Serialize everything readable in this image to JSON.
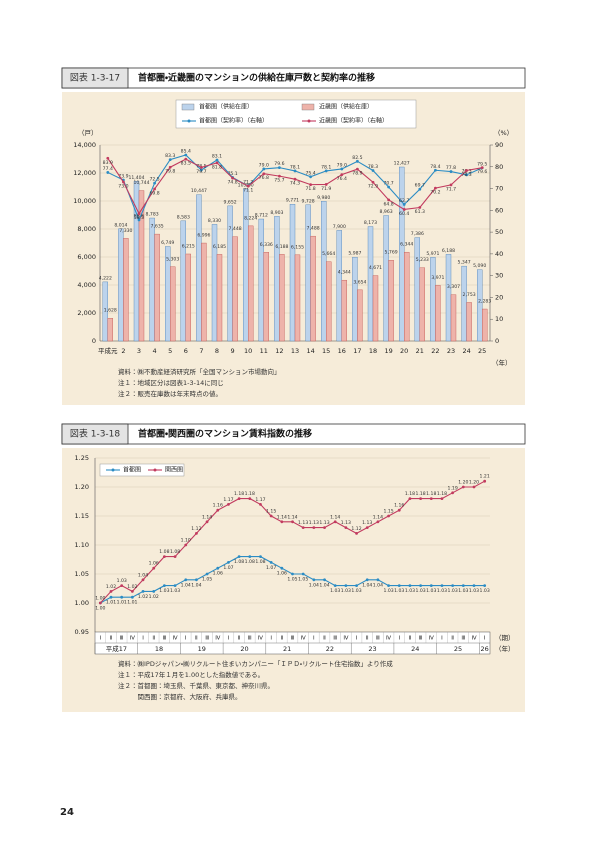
{
  "page_number": "24",
  "chart_data": [
    {
      "type": "combo",
      "figure_label": "図表 1-3-17",
      "title": "首都圏・近畿圏のマンションの供給在庫戸数と契約率の推移",
      "y_label": "（戸）",
      "y2_label": "（%）",
      "x_label": "（年）",
      "categories": [
        "平成元",
        "2",
        "3",
        "4",
        "5",
        "6",
        "7",
        "8",
        "9",
        "10",
        "11",
        "12",
        "13",
        "14",
        "15",
        "16",
        "17",
        "18",
        "19",
        "20",
        "21",
        "22",
        "23",
        "24",
        "25"
      ],
      "ylim": [
        0,
        14000
      ],
      "yticks": [
        0,
        {
          "value": 2000,
          "label": "2,000"
        },
        {
          "value": 4000,
          "label": "4,000"
        },
        {
          "value": 6000,
          "label": "6,000"
        },
        {
          "value": 8000,
          "label": "8,000"
        },
        {
          "value": 10000,
          "label": "10,000"
        },
        {
          "value": 12000,
          "label": "12,000"
        },
        {
          "value": 14000,
          "label": "14,000"
        }
      ],
      "y2lim": [
        0,
        90
      ],
      "y2ticks": [
        0,
        10,
        20,
        30,
        40,
        50,
        60,
        70,
        80,
        90
      ],
      "grid": true,
      "series": [
        {
          "name": "首都圏（供給在庫）",
          "kind": "bar",
          "color": "#bcd3ec",
          "values": [
            4222,
            8014,
            11404,
            8783,
            6749,
            8583,
            10447,
            8330,
            9652,
            10860,
            8712,
            8903,
            9771,
            9728,
            9980,
            7900,
            5987,
            8173,
            8963,
            12427,
            7386,
            5971,
            6188,
            5347,
            5090
          ],
          "value_labels": [
            "4,222",
            "8,014",
            "11,404",
            "8,783",
            "6,749",
            "8,583",
            "10,447",
            "8,330",
            "9,652",
            "10,860",
            "8,712",
            "8,903",
            "9,771",
            "9,728",
            "9,980",
            "7,900",
            "5,987",
            "8,173",
            "8,963",
            "12,427",
            "7,386",
            "5,971",
            "6,188",
            "5,347",
            "5,090"
          ]
        },
        {
          "name": "近畿圏（供給在庫）",
          "kind": "bar",
          "color": "#eeb3aa",
          "values": [
            1628,
            7330,
            10744,
            7635,
            5303,
            6215,
            6996,
            6185,
            7448,
            8224,
            6336,
            6188,
            6155,
            7488,
            5664,
            4344,
            3654,
            4671,
            5769,
            6344,
            5233,
            3971,
            3307,
            2753,
            2283
          ],
          "value_labels": [
            "1,628",
            "7,330",
            "10,744",
            "7,635",
            "5,303",
            "6,215",
            "6,996",
            "6,185",
            "7,448",
            "8,224",
            "6,336",
            "6,188",
            "6,155",
            "7,488",
            "5,664",
            "4,344",
            "3,654",
            "4,671",
            "5,769",
            "6,344",
            "5,233",
            "3,971",
            "3,307",
            "2,753",
            "2,283"
          ]
        },
        {
          "name": "首都圏（契約率）（右軸）",
          "kind": "line",
          "axis": "y2",
          "color": "#2b8cc4",
          "values": [
            77.4,
            73.9,
            55.6,
            72.5,
            83.3,
            85.4,
            78.5,
            83.1,
            75.1,
            71.2,
            79.0,
            79.6,
            78.1,
            75.4,
            78.1,
            79.0,
            82.5,
            78.3,
            70.7,
            62.7,
            69.7,
            78.4,
            77.8,
            76.3,
            79.5
          ],
          "value_labels": [
            "77.4",
            "73.9",
            "55.6",
            "72.5",
            "83.3",
            "85.4",
            "78.5",
            "83.1",
            "75.1",
            "71.2",
            "79.0",
            "79.6",
            "78.1",
            "75.4",
            "78.1",
            "79.0",
            "82.5",
            "78.3",
            "70.7",
            "62.7",
            "69.7",
            "78.4",
            "77.8",
            "76.3",
            "79.5"
          ]
        },
        {
          "name": "近畿圏（契約率）（右軸）",
          "kind": "line",
          "axis": "y2",
          "color": "#c23b5f",
          "values": [
            83.9,
            73.0,
            58.5,
            69.8,
            79.8,
            83.5,
            79.7,
            81.8,
            74.8,
            71.1,
            76.8,
            75.7,
            74.3,
            71.8,
            71.9,
            76.4,
            78.9,
            72.9,
            64.8,
            60.4,
            61.3,
            70.2,
            71.7,
            78.3,
            79.6
          ],
          "value_labels": [
            "83.9",
            "73.0",
            "58.5",
            "69.8",
            "79.8",
            "83.5",
            "79.7",
            "81.8",
            "74.8",
            "71.1",
            "76.8",
            "75.7",
            "74.3",
            "71.8",
            "71.9",
            "76.4",
            "78.9",
            "72.9",
            "64.8",
            "60.4",
            "61.3",
            "70.2",
            "71.7",
            "78.3",
            "79.6"
          ]
        }
      ],
      "notes": [
        "資料：㈱不動産経済研究所「全国マンション市場動向」",
        "注１：地域区分は図表1-3-14に同じ",
        "注２：販売在庫数は年末時点の値。"
      ]
    },
    {
      "type": "line",
      "figure_label": "図表 1-3-18",
      "title": "首都圏・関西圏のマンション賃料指数の推移",
      "x_label": "（期）",
      "x_group_label": "（年）",
      "categories": [
        "Ⅰ",
        "Ⅱ",
        "Ⅲ",
        "Ⅳ",
        "Ⅰ",
        "Ⅱ",
        "Ⅲ",
        "Ⅳ",
        "Ⅰ",
        "Ⅱ",
        "Ⅲ",
        "Ⅳ",
        "Ⅰ",
        "Ⅱ",
        "Ⅲ",
        "Ⅳ",
        "Ⅰ",
        "Ⅱ",
        "Ⅲ",
        "Ⅳ",
        "Ⅰ",
        "Ⅱ",
        "Ⅲ",
        "Ⅳ",
        "Ⅰ",
        "Ⅱ",
        "Ⅲ",
        "Ⅳ",
        "Ⅰ",
        "Ⅱ",
        "Ⅲ",
        "Ⅳ",
        "Ⅰ",
        "Ⅱ",
        "Ⅲ",
        "Ⅳ",
        "Ⅰ"
      ],
      "x_groups": [
        "平成17",
        "18",
        "19",
        "20",
        "21",
        "22",
        "23",
        "24",
        "25",
        "26"
      ],
      "ylim": [
        0.95,
        1.25
      ],
      "yticks": [
        0.95,
        {
          "value": 1,
          "label": "1.00"
        },
        1.05,
        {
          "value": 1.1,
          "label": "1.10"
        },
        1.15,
        {
          "value": 1.2,
          "label": "1.20"
        },
        1.25
      ],
      "grid": true,
      "series": [
        {
          "name": "首都圏",
          "color": "#2b8cc4",
          "values": [
            1.0,
            1.01,
            1.01,
            1.01,
            1.02,
            1.02,
            1.03,
            1.03,
            1.04,
            1.04,
            1.05,
            1.06,
            1.07,
            1.08,
            1.08,
            1.08,
            1.07,
            1.06,
            1.05,
            1.05,
            1.04,
            1.04,
            1.03,
            1.03,
            1.03,
            1.04,
            1.04,
            1.03,
            1.03,
            1.03,
            1.03,
            1.03,
            1.03,
            1.03,
            1.03,
            1.03,
            1.03
          ],
          "value_labels": [
            "1.00",
            "1.01",
            "1.01",
            "1.01",
            "1.02",
            "1.02",
            "1.03",
            "1.03",
            "1.04",
            "1.04",
            "1.05",
            "1.06",
            "1.07",
            "1.08",
            "1.08",
            "1.08",
            "1.07",
            "1.06",
            "1.05",
            "1.05",
            "1.04",
            "1.04",
            "1.03",
            "1.03",
            "1.03",
            "1.04",
            "1.04",
            "1.03",
            "1.03",
            "1.03",
            "1.03",
            "1.03",
            "1.03",
            "1.03",
            "1.03",
            "1.03",
            "1.03"
          ]
        },
        {
          "name": "関西圏",
          "color": "#c23b5f",
          "values": [
            1.0,
            1.02,
            1.03,
            1.02,
            1.04,
            1.06,
            1.08,
            1.08,
            1.1,
            1.12,
            1.14,
            1.16,
            1.17,
            1.18,
            1.18,
            1.17,
            1.15,
            1.14,
            1.14,
            1.13,
            1.13,
            1.13,
            1.14,
            1.13,
            1.12,
            1.13,
            1.14,
            1.15,
            1.16,
            1.18,
            1.18,
            1.18,
            1.18,
            1.19,
            1.2,
            1.2,
            1.21
          ],
          "value_labels": [
            "1.00",
            "1.02",
            "1.03",
            "1.02",
            "1.04",
            "1.06",
            "1.08",
            "1.08",
            "1.10",
            "1.12",
            "1.14",
            "1.16",
            "1.17",
            "1.18",
            "1.18",
            "1.17",
            "1.15",
            "1.14",
            "1.14",
            "1.13",
            "1.13",
            "1.13",
            "1.14",
            "1.13",
            "1.12",
            "1.13",
            "1.14",
            "1.15",
            "1.16",
            "1.18",
            "1.18",
            "1.18",
            "1.18",
            "1.19",
            "1.20",
            "1.20",
            "1.21"
          ]
        }
      ],
      "notes": [
        "資料：㈱IPDジャパン・㈱リクルート住まいカンパニー「ＩＰＤ・リクルート住宅指数」より作成",
        "注１：平成17年１月を1.00とした指数値である。",
        "注２：首都圏：埼玉県、千葉県、東京都、神奈川県。",
        "　　　関西圏：京都府、大阪府、兵庫県。"
      ]
    }
  ]
}
